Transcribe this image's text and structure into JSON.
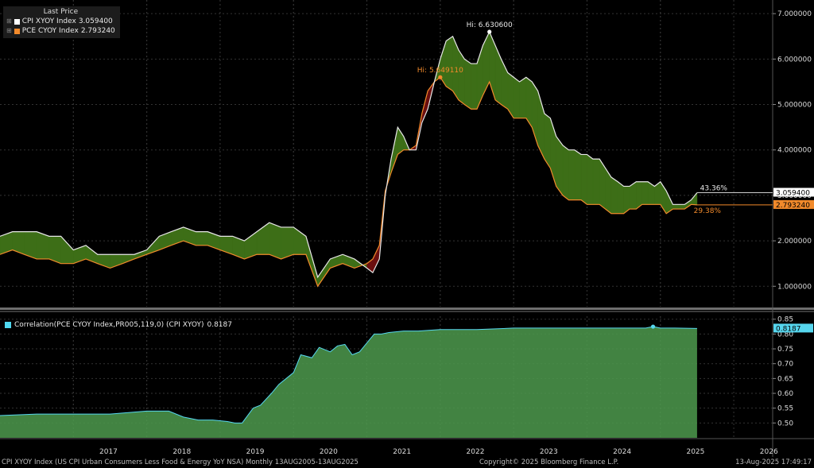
{
  "legend": {
    "header": "Last Price",
    "items": [
      {
        "label": "CPI XYOY Index",
        "value": "3.059400",
        "color": "#ffffff"
      },
      {
        "label": "PCE CYOY Index",
        "value": "2.793240",
        "color": "#f28a2b"
      }
    ]
  },
  "correlation_legend": {
    "label": "Correlation(PCE CYOY Index,PR005,119,0) (CPI XYOY)",
    "value": "0.8187",
    "color": "#4fd8f0"
  },
  "footer": {
    "left": "CPI XYOY Index (US CPI Urban Consumers Less Food & Energy YoY NSA)  Monthly 13AUG2005-13AUG2025",
    "center": "Copyright© 2025 Bloomberg Finance L.P.",
    "right": "13-Aug-2025 17:49:17"
  },
  "colors": {
    "background": "#000000",
    "cpi_line": "#e8e8e8",
    "pce_line": "#f28a2b",
    "spread_positive": "#3d6e17",
    "spread_negative": "#6b0f0f",
    "corr_fill": "#4e9a4e",
    "corr_line": "#56d6ee",
    "grid": "#333333"
  },
  "chart_data": [
    {
      "type": "line",
      "ylim": [
        0.55,
        7.3
      ],
      "yticks": [
        "7.000000",
        "6.000000",
        "5.000000",
        "4.000000",
        "3.000000",
        "2.000000",
        "1.000000"
      ],
      "ytick_values": [
        7,
        6,
        5,
        4,
        3,
        2,
        1
      ],
      "xlabels": [
        "2017",
        "2018",
        "2019",
        "2020",
        "2021",
        "2022",
        "2023",
        "2024",
        "2025",
        "2026"
      ],
      "x_start": 2016.0,
      "x_end": 2026.53,
      "annotations": {
        "cpi_hi": "Hi: 6.630600",
        "pce_hi": "Hi: 5.649110",
        "cpi_pct": "43.36%",
        "pce_pct": "29.38%",
        "cpi_last": "3.059400",
        "pce_last": "2.793240"
      },
      "series": [
        {
          "name": "CPI XYOY Index",
          "x": [
            2016.0,
            2016.17,
            2016.33,
            2016.5,
            2016.67,
            2016.83,
            2017.0,
            2017.17,
            2017.33,
            2017.5,
            2017.67,
            2017.83,
            2018.0,
            2018.17,
            2018.33,
            2018.5,
            2018.67,
            2018.83,
            2019.0,
            2019.17,
            2019.33,
            2019.5,
            2019.67,
            2019.83,
            2020.0,
            2020.17,
            2020.33,
            2020.5,
            2020.67,
            2020.83,
            2021.0,
            2021.08,
            2021.17,
            2021.25,
            2021.33,
            2021.42,
            2021.5,
            2021.58,
            2021.67,
            2021.75,
            2021.83,
            2021.92,
            2022.0,
            2022.08,
            2022.17,
            2022.25,
            2022.33,
            2022.42,
            2022.5,
            2022.58,
            2022.67,
            2022.75,
            2022.83,
            2022.92,
            2023.0,
            2023.08,
            2023.17,
            2023.25,
            2023.33,
            2023.42,
            2023.5,
            2023.58,
            2023.67,
            2023.75,
            2023.83,
            2023.92,
            2024.0,
            2024.08,
            2024.17,
            2024.25,
            2024.33,
            2024.42,
            2024.5,
            2024.58,
            2024.67,
            2024.75,
            2024.83,
            2024.92,
            2025.0,
            2025.08,
            2025.17,
            2025.25,
            2025.33,
            2025.42,
            2025.5
          ],
          "y": [
            2.1,
            2.2,
            2.2,
            2.2,
            2.1,
            2.1,
            1.8,
            1.9,
            1.7,
            1.7,
            1.7,
            1.7,
            1.8,
            2.1,
            2.2,
            2.3,
            2.2,
            2.2,
            2.1,
            2.1,
            2.0,
            2.2,
            2.4,
            2.3,
            2.3,
            2.1,
            1.2,
            1.6,
            1.7,
            1.6,
            1.4,
            1.3,
            1.6,
            3.0,
            3.8,
            4.5,
            4.3,
            4.0,
            4.0,
            4.6,
            4.9,
            5.5,
            6.0,
            6.4,
            6.5,
            6.2,
            6.0,
            5.9,
            5.9,
            6.3,
            6.6,
            6.3,
            6.0,
            5.7,
            5.6,
            5.5,
            5.6,
            5.5,
            5.3,
            4.8,
            4.7,
            4.3,
            4.1,
            4.0,
            4.0,
            3.9,
            3.9,
            3.8,
            3.8,
            3.6,
            3.4,
            3.3,
            3.2,
            3.2,
            3.3,
            3.3,
            3.3,
            3.2,
            3.3,
            3.1,
            2.8,
            2.8,
            2.8,
            2.9,
            3.06
          ]
        },
        {
          "name": "PCE CYOY Index",
          "x": [
            2016.0,
            2016.17,
            2016.33,
            2016.5,
            2016.67,
            2016.83,
            2017.0,
            2017.17,
            2017.33,
            2017.5,
            2017.67,
            2017.83,
            2018.0,
            2018.17,
            2018.33,
            2018.5,
            2018.67,
            2018.83,
            2019.0,
            2019.17,
            2019.33,
            2019.5,
            2019.67,
            2019.83,
            2020.0,
            2020.17,
            2020.33,
            2020.5,
            2020.67,
            2020.83,
            2021.0,
            2021.08,
            2021.17,
            2021.25,
            2021.33,
            2021.42,
            2021.5,
            2021.58,
            2021.67,
            2021.75,
            2021.83,
            2021.92,
            2022.0,
            2022.08,
            2022.17,
            2022.25,
            2022.33,
            2022.42,
            2022.5,
            2022.58,
            2022.67,
            2022.75,
            2022.83,
            2022.92,
            2023.0,
            2023.08,
            2023.17,
            2023.25,
            2023.33,
            2023.42,
            2023.5,
            2023.58,
            2023.67,
            2023.75,
            2023.83,
            2023.92,
            2024.0,
            2024.08,
            2024.17,
            2024.25,
            2024.33,
            2024.42,
            2024.5,
            2024.58,
            2024.67,
            2024.75,
            2024.83,
            2024.92,
            2025.0,
            2025.08,
            2025.17,
            2025.25,
            2025.33,
            2025.42,
            2025.5
          ],
          "y": [
            1.7,
            1.8,
            1.7,
            1.6,
            1.6,
            1.5,
            1.5,
            1.6,
            1.5,
            1.4,
            1.5,
            1.6,
            1.7,
            1.8,
            1.9,
            2.0,
            1.9,
            1.9,
            1.8,
            1.7,
            1.6,
            1.7,
            1.7,
            1.6,
            1.7,
            1.7,
            1.0,
            1.4,
            1.5,
            1.4,
            1.5,
            1.6,
            1.9,
            3.1,
            3.5,
            3.9,
            4.0,
            4.0,
            4.1,
            4.8,
            5.3,
            5.5,
            5.6,
            5.4,
            5.3,
            5.1,
            5.0,
            4.9,
            4.9,
            5.2,
            5.5,
            5.1,
            5.0,
            4.9,
            4.7,
            4.7,
            4.7,
            4.5,
            4.1,
            3.8,
            3.6,
            3.2,
            3.0,
            2.9,
            2.9,
            2.9,
            2.8,
            2.8,
            2.8,
            2.7,
            2.6,
            2.6,
            2.6,
            2.7,
            2.7,
            2.8,
            2.8,
            2.8,
            2.8,
            2.6,
            2.7,
            2.7,
            2.7,
            2.8,
            2.79
          ]
        }
      ]
    },
    {
      "type": "area",
      "ylim": [
        0.45,
        0.86
      ],
      "yticks": [
        "0.85",
        "0.80",
        "0.75",
        "0.70",
        "0.65",
        "0.60",
        "0.55",
        "0.50"
      ],
      "ytick_values": [
        0.85,
        0.8,
        0.75,
        0.7,
        0.65,
        0.6,
        0.55,
        0.5
      ],
      "last_value": "0.8187",
      "series": [
        {
          "name": "Correlation(PCE CYOY Index,PR005,119,0) (CPI XYOY)",
          "x": [
            2016.0,
            2016.5,
            2017.0,
            2017.5,
            2018.0,
            2018.3,
            2018.5,
            2018.7,
            2018.9,
            2019.1,
            2019.2,
            2019.3,
            2019.45,
            2019.55,
            2019.7,
            2019.8,
            2020.0,
            2020.1,
            2020.25,
            2020.35,
            2020.5,
            2020.6,
            2020.7,
            2020.8,
            2020.9,
            2021.0,
            2021.1,
            2021.2,
            2021.3,
            2021.5,
            2021.7,
            2022.0,
            2022.5,
            2023.0,
            2023.5,
            2024.0,
            2024.5,
            2024.8,
            2024.9,
            2025.0,
            2025.2,
            2025.5
          ],
          "y": [
            0.525,
            0.53,
            0.53,
            0.53,
            0.54,
            0.54,
            0.52,
            0.51,
            0.51,
            0.505,
            0.5,
            0.5,
            0.55,
            0.56,
            0.6,
            0.63,
            0.67,
            0.73,
            0.72,
            0.755,
            0.74,
            0.76,
            0.765,
            0.73,
            0.74,
            0.77,
            0.8,
            0.8,
            0.805,
            0.81,
            0.81,
            0.815,
            0.815,
            0.82,
            0.82,
            0.82,
            0.82,
            0.82,
            0.825,
            0.82,
            0.82,
            0.8187
          ]
        }
      ]
    }
  ]
}
